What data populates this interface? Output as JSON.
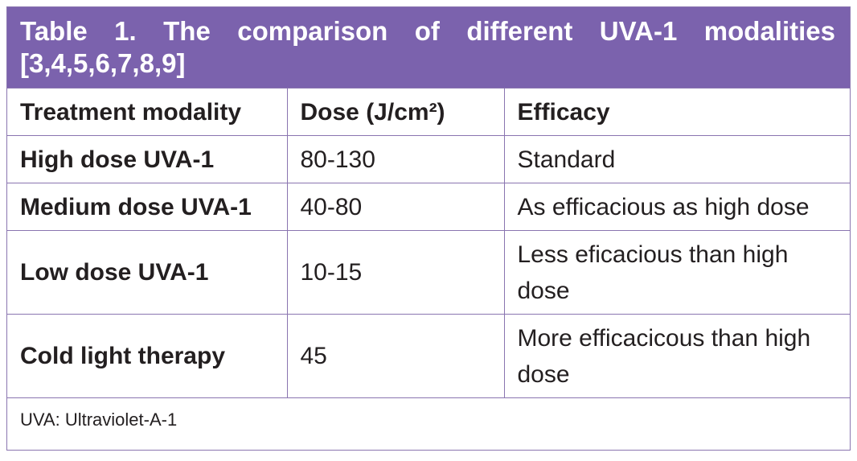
{
  "caption": "Table 1. The comparison of different UVA-1 modalities [3,4,5,6,7,8,9]",
  "headers": {
    "modality": "Treatment modality",
    "dose": "Dose (J/cm²)",
    "efficacy": "Efficacy"
  },
  "rows": [
    {
      "modality": "High dose UVA-1",
      "dose": "80-130",
      "efficacy": "Standard"
    },
    {
      "modality": "Medium dose UVA-1",
      "dose": "40-80",
      "efficacy": "As efficacious as high dose"
    },
    {
      "modality": "Low dose UVA-1",
      "dose": "10-15",
      "efficacy": "Less eficacious than high dose"
    },
    {
      "modality": "Cold light therapy",
      "dose": "45",
      "efficacy": "More efficacicous than high dose"
    }
  ],
  "footnote": "UVA: Ultraviolet-A-1",
  "colors": {
    "header_band": "#7b62ad",
    "border": "#8a75b0"
  }
}
